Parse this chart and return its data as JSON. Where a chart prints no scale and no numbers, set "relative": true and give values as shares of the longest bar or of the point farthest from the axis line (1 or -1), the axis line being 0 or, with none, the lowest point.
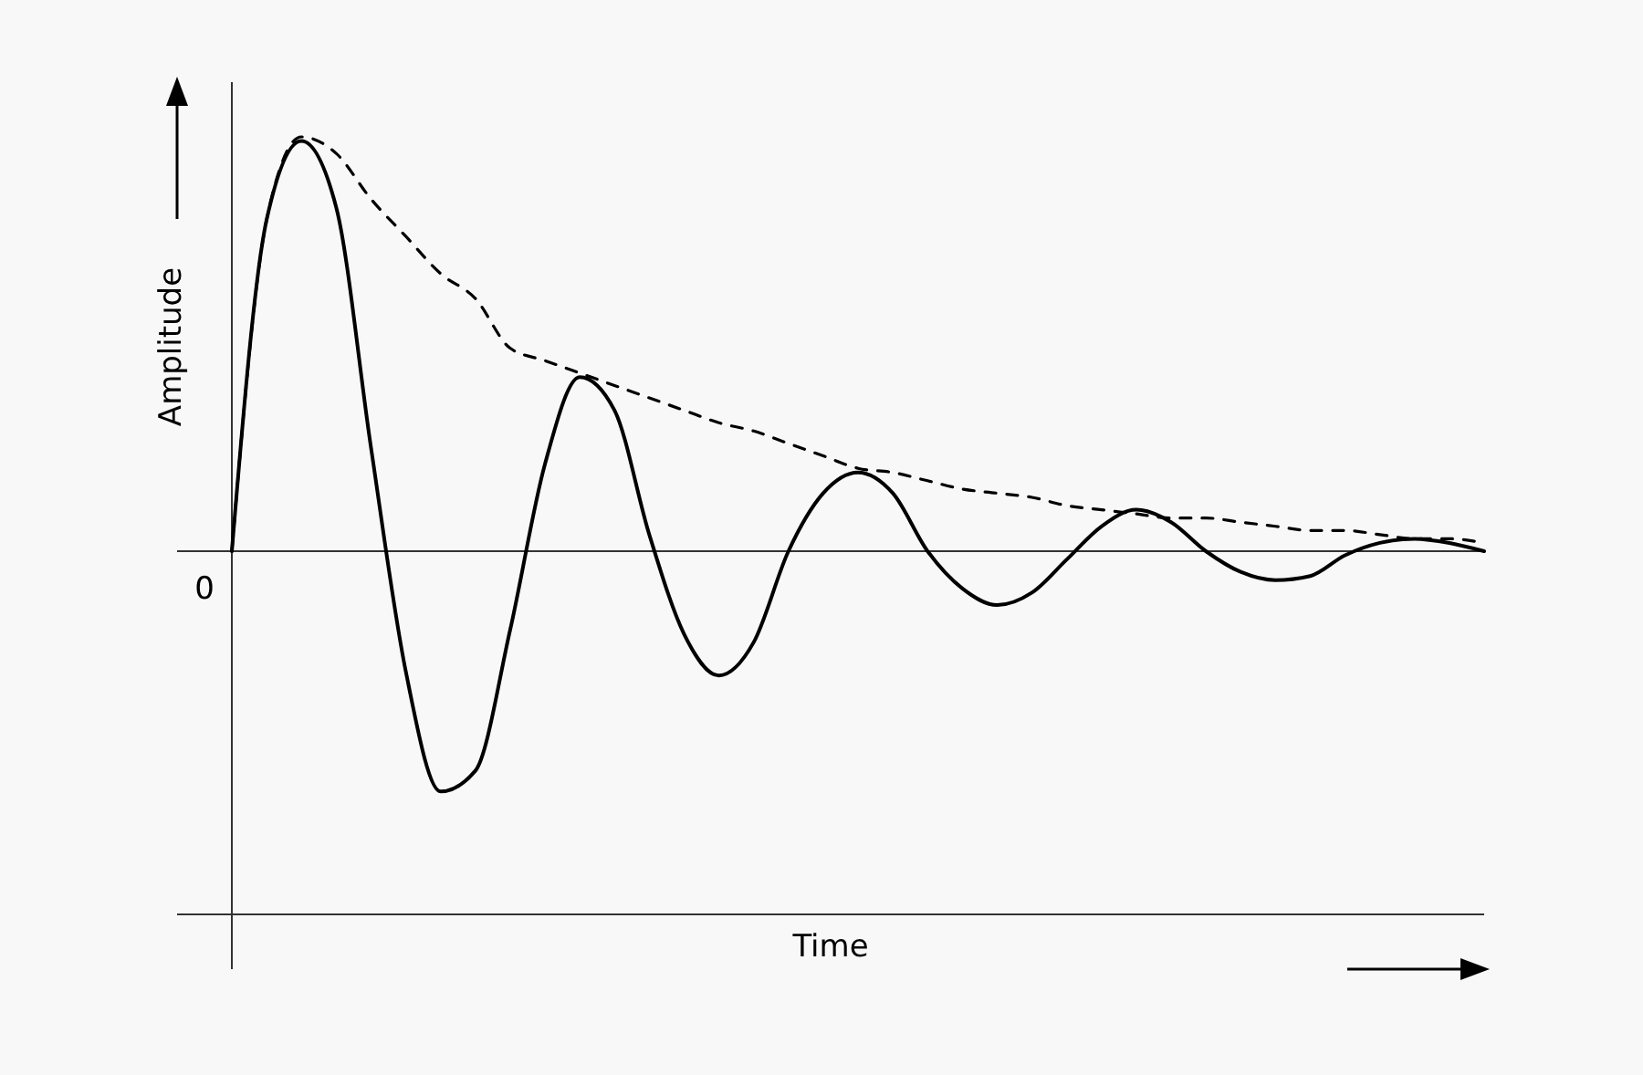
{
  "chart_data": {
    "type": "line",
    "relative": true,
    "xlabel": "Time",
    "ylabel": "Amplitude",
    "annotations": [
      "0"
    ],
    "categories": [
      null,
      null,
      null,
      null,
      null,
      null,
      null,
      null,
      null,
      null,
      null,
      null,
      null,
      null,
      null,
      null,
      null,
      null,
      null,
      null,
      null,
      null,
      null,
      null,
      null,
      null,
      null,
      null,
      null,
      null,
      null,
      null,
      null,
      null,
      null,
      null,
      null
    ],
    "series": [
      {
        "color": "#000000",
        "line_style": "solid",
        "values": [
          0,
          0.8,
          0.99,
          0.83,
          0.25,
          -0.29,
          -0.58,
          -0.53,
          -0.19,
          0.21,
          0.42,
          0.34,
          0.04,
          -0.2,
          -0.3,
          -0.22,
          0,
          0.14,
          0.19,
          0.14,
          0,
          -0.09,
          -0.13,
          -0.1,
          -0.02,
          0.06,
          0.1,
          0.07,
          0,
          -0.05,
          -0.07,
          -0.06,
          -0.01,
          0.02,
          0.03,
          0.02,
          0
        ]
      },
      {
        "color": "#000000",
        "line_style": "dashed",
        "values": [
          0,
          0.8,
          1,
          0.96,
          0.85,
          0.76,
          0.67,
          0.61,
          0.49,
          0.46,
          0.43,
          0.4,
          0.37,
          0.34,
          0.31,
          0.29,
          0.26,
          0.23,
          0.2,
          0.19,
          0.17,
          0.15,
          0.14,
          0.13,
          0.11,
          0.1,
          0.09,
          0.08,
          0.08,
          0.07,
          0.06,
          0.05,
          0.05,
          0.04,
          0.03,
          0.03,
          0.02
        ]
      }
    ]
  }
}
